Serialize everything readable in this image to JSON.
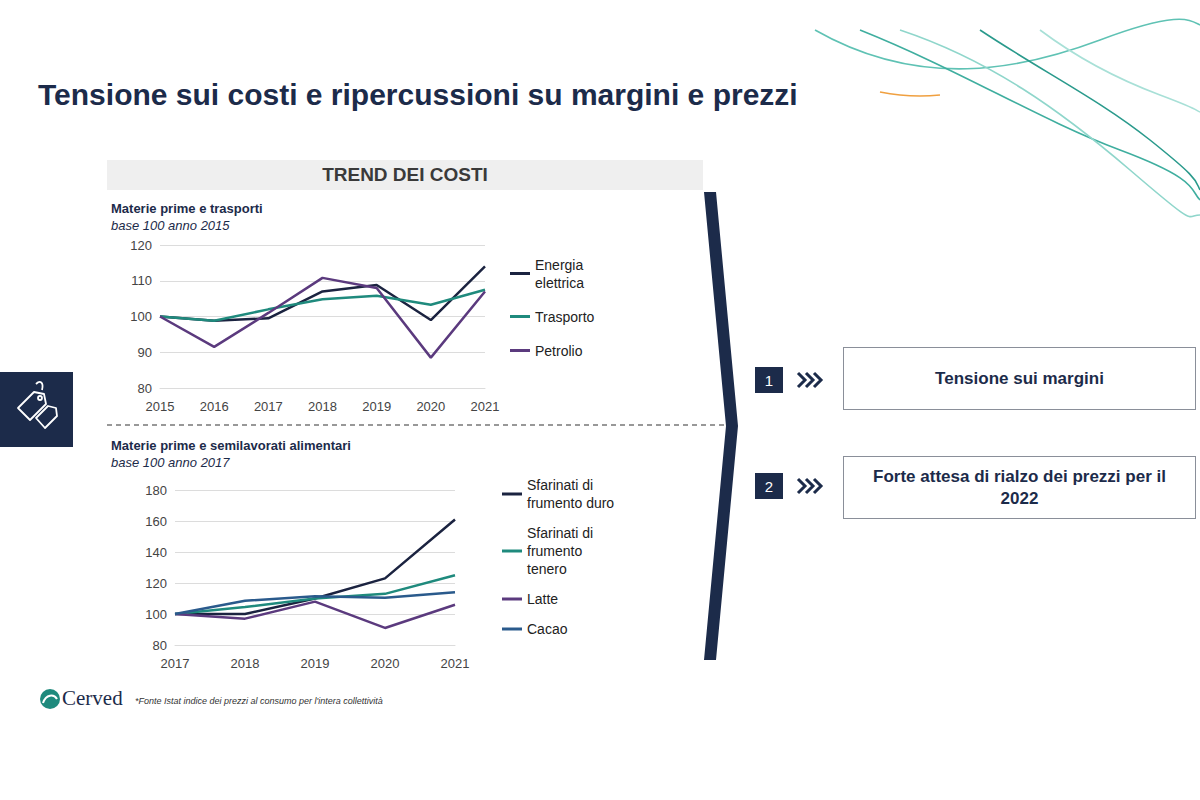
{
  "title": "Tensione sui costi e ripercussioni su margini e prezzi",
  "section_title": "TREND DEI COSTI",
  "chart_data": [
    {
      "type": "line",
      "title": "Materie prime e trasporti",
      "subtitle": "base 100 anno 2015",
      "categories": [
        "2015",
        "2016",
        "2017",
        "2018",
        "2019",
        "2020",
        "2021"
      ],
      "series": [
        {
          "name": "Energia elettrica",
          "color": "#1b2340",
          "values": [
            100,
            98.8,
            99.5,
            107,
            108.8,
            99,
            114
          ]
        },
        {
          "name": "Trasporto",
          "color": "#1f8a7d",
          "values": [
            100,
            98.8,
            102,
            104.8,
            105.8,
            103.3,
            107.5
          ]
        },
        {
          "name": "Petrolio",
          "color": "#5b3a7e",
          "values": [
            100,
            91.5,
            101,
            110.8,
            108,
            88.5,
            107
          ]
        }
      ],
      "ylim": [
        80,
        120
      ],
      "yticks": [
        80,
        90,
        100,
        110,
        120
      ],
      "grid": true,
      "legend": "right"
    },
    {
      "type": "line",
      "title": "Materie prime e semilavorati alimentari",
      "subtitle": "base 100 anno 2017",
      "categories": [
        "2017",
        "2018",
        "2019",
        "2020",
        "2021"
      ],
      "series": [
        {
          "name": "Sfarinati di frumento duro",
          "color": "#1b2340",
          "values": [
            100,
            100,
            110,
            123,
            161
          ]
        },
        {
          "name": "Sfarinati di frumento tenero",
          "color": "#1f8a7d",
          "values": [
            100,
            104.5,
            110,
            113,
            125
          ]
        },
        {
          "name": "Latte",
          "color": "#5b3a7e",
          "values": [
            100,
            97,
            108,
            91,
            106
          ]
        },
        {
          "name": "Cacao",
          "color": "#2a5a8c",
          "values": [
            100,
            108.5,
            111.5,
            110.5,
            114
          ]
        }
      ],
      "ylim": [
        80,
        180
      ],
      "yticks": [
        80,
        100,
        120,
        140,
        160,
        180
      ],
      "grid": true,
      "legend": "right"
    }
  ],
  "outcomes": [
    {
      "number": 1,
      "text": "Tensione sui margini"
    },
    {
      "number": 2,
      "text": "Forte attesa di rialzo dei prezzi per il 2022"
    }
  ],
  "logo": "Cerved",
  "source": "*Fonte Istat indice dei prezzi al consumo per l'intera collettività"
}
